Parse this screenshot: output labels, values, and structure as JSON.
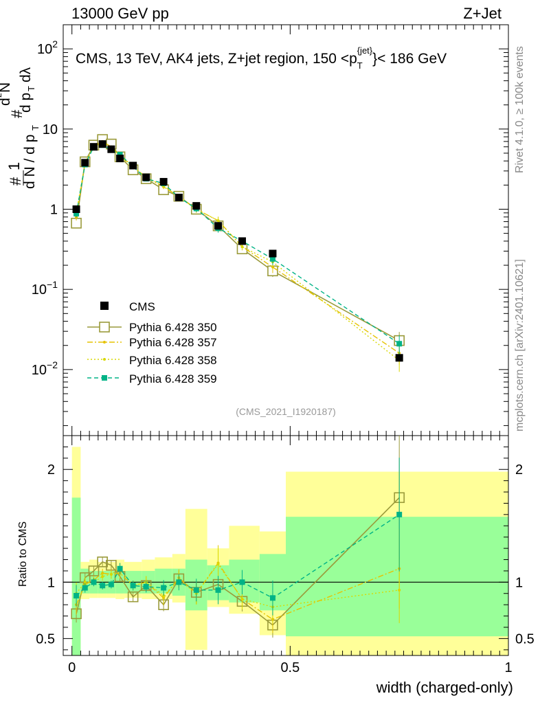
{
  "header": {
    "left": "13000 GeV pp",
    "right": "Z+Jet"
  },
  "side_labels": {
    "rivet": "Rivet 4.1.0, ≥ 100k events",
    "mcplots": "mcplots.cern.ch [arXiv:2401.10621]"
  },
  "colors": {
    "cms": "#000000",
    "p350": "#9a9a3a",
    "p357": "#e6c200",
    "p358": "#d8d800",
    "p359": "#00b386",
    "band_yellow": "#ffff99",
    "band_green": "#99ff99"
  },
  "chart_data": [
    {
      "type": "line",
      "title": "CMS, 13 TeV, AK4 jets, Z+jet region, 150 <p_T^{jet}< 186 GeV",
      "ylabel": "1/(dN/dp_T) d²N/(dp_T dλ)",
      "yscale": "log",
      "ylim": [
        0.0015,
        200
      ],
      "xlim": [
        -0.02,
        1.0
      ],
      "reference": "(CMS_2021_I1920187)",
      "y_tick_labels": [
        "10^-2",
        "10^-1",
        "1",
        "10",
        "10^2"
      ],
      "x": [
        0.01,
        0.03,
        0.05,
        0.07,
        0.09,
        0.11,
        0.14,
        0.17,
        0.21,
        0.245,
        0.285,
        0.335,
        0.39,
        0.46,
        0.75
      ],
      "series": [
        {
          "name": "CMS",
          "marker": "filled-square",
          "values": [
            1.0,
            3.8,
            6.0,
            6.5,
            5.6,
            4.3,
            3.5,
            2.5,
            2.2,
            1.4,
            1.1,
            0.62,
            0.4,
            0.28,
            0.014
          ]
        },
        {
          "name": "Pythia 6.428 350",
          "marker": "open-square",
          "values": [
            0.67,
            3.9,
            6.3,
            7.4,
            6.5,
            4.5,
            3.1,
            2.4,
            1.75,
            1.45,
            1.0,
            0.62,
            0.32,
            0.17,
            0.023
          ]
        },
        {
          "name": "Pythia 6.428 357",
          "marker": "dash-dot",
          "values": [
            0.8,
            3.7,
            6.1,
            7.0,
            6.0,
            4.6,
            3.4,
            2.5,
            1.9,
            1.45,
            1.0,
            0.72,
            0.34,
            0.19,
            0.016
          ]
        },
        {
          "name": "Pythia 6.428 358",
          "marker": "dotted",
          "values": [
            0.9,
            3.8,
            6.0,
            6.8,
            6.0,
            4.8,
            3.4,
            2.5,
            1.95,
            1.42,
            1.0,
            0.72,
            0.34,
            0.22,
            0.013
          ]
        },
        {
          "name": "Pythia 6.428 359",
          "marker": "dashed-square",
          "values": [
            0.88,
            3.6,
            6.0,
            6.3,
            5.5,
            4.8,
            3.4,
            2.4,
            2.1,
            1.4,
            1.02,
            0.58,
            0.4,
            0.24,
            0.021
          ]
        }
      ]
    },
    {
      "type": "line",
      "ylabel": "Ratio to CMS",
      "xlabel": "width (charged-only)",
      "ylim": [
        0.35,
        2.3
      ],
      "xlim": [
        -0.02,
        1.0
      ],
      "y_tick_labels": [
        "0.5",
        "1",
        "2"
      ],
      "x_tick_labels": [
        "0",
        "0.5",
        "1"
      ],
      "bins": [
        {
          "lo": 0.0,
          "hi": 0.02,
          "yellow": [
            0.0,
            2.2
          ],
          "green": [
            0.0,
            1.75
          ]
        },
        {
          "lo": 0.02,
          "hi": 0.04,
          "yellow": [
            0.85,
            1.18
          ],
          "green": [
            0.9,
            1.12
          ]
        },
        {
          "lo": 0.04,
          "hi": 0.06,
          "yellow": [
            0.86,
            1.2
          ],
          "green": [
            0.9,
            1.1
          ]
        },
        {
          "lo": 0.06,
          "hi": 0.08,
          "yellow": [
            0.86,
            1.18
          ],
          "green": [
            0.9,
            1.1
          ]
        },
        {
          "lo": 0.08,
          "hi": 0.1,
          "yellow": [
            0.86,
            1.18
          ],
          "green": [
            0.9,
            1.1
          ]
        },
        {
          "lo": 0.1,
          "hi": 0.12,
          "yellow": [
            0.85,
            1.2
          ],
          "green": [
            0.9,
            1.1
          ]
        },
        {
          "lo": 0.12,
          "hi": 0.16,
          "yellow": [
            0.86,
            1.18
          ],
          "green": [
            0.9,
            1.1
          ]
        },
        {
          "lo": 0.16,
          "hi": 0.19,
          "yellow": [
            0.85,
            1.2
          ],
          "green": [
            0.9,
            1.1
          ]
        },
        {
          "lo": 0.19,
          "hi": 0.23,
          "yellow": [
            0.85,
            1.22
          ],
          "green": [
            0.9,
            1.12
          ]
        },
        {
          "lo": 0.23,
          "hi": 0.26,
          "yellow": [
            0.82,
            1.25
          ],
          "green": [
            0.88,
            1.12
          ]
        },
        {
          "lo": 0.26,
          "hi": 0.31,
          "yellow": [
            0.4,
            1.65
          ],
          "green": [
            0.75,
            1.2
          ]
        },
        {
          "lo": 0.31,
          "hi": 0.36,
          "yellow": [
            0.78,
            1.3
          ],
          "green": [
            0.84,
            1.15
          ]
        },
        {
          "lo": 0.36,
          "hi": 0.43,
          "yellow": [
            0.72,
            1.5
          ],
          "green": [
            0.82,
            1.2
          ]
        },
        {
          "lo": 0.43,
          "hi": 0.49,
          "yellow": [
            0.53,
            1.45
          ],
          "green": [
            0.75,
            1.25
          ]
        },
        {
          "lo": 0.49,
          "hi": 1.0,
          "yellow": [
            0.35,
            1.98
          ],
          "green": [
            0.52,
            1.58
          ]
        }
      ],
      "series": [
        {
          "name": "Pythia 6.428 350",
          "values": [
            0.72,
            1.04,
            1.1,
            1.18,
            1.15,
            1.05,
            0.87,
            0.97,
            0.8,
            1.03,
            0.91,
            0.98,
            0.83,
            0.62,
            1.75
          ]
        },
        {
          "name": "Pythia 6.428 357",
          "values": [
            0.8,
            0.98,
            1.02,
            1.08,
            1.07,
            1.08,
            0.97,
            1.0,
            0.86,
            1.04,
            0.9,
            1.17,
            0.85,
            0.67,
            1.12
          ]
        },
        {
          "name": "Pythia 6.428 358",
          "values": [
            0.9,
            1.0,
            1.0,
            1.05,
            1.07,
            1.12,
            0.97,
            1.0,
            0.88,
            1.02,
            0.9,
            1.16,
            0.85,
            0.78,
            0.93
          ]
        },
        {
          "name": "Pythia 6.428 359",
          "values": [
            0.88,
            0.95,
            1.0,
            0.97,
            0.98,
            1.12,
            0.97,
            0.96,
            0.95,
            1.0,
            0.93,
            0.93,
            1.0,
            0.86,
            1.6
          ]
        }
      ]
    }
  ]
}
